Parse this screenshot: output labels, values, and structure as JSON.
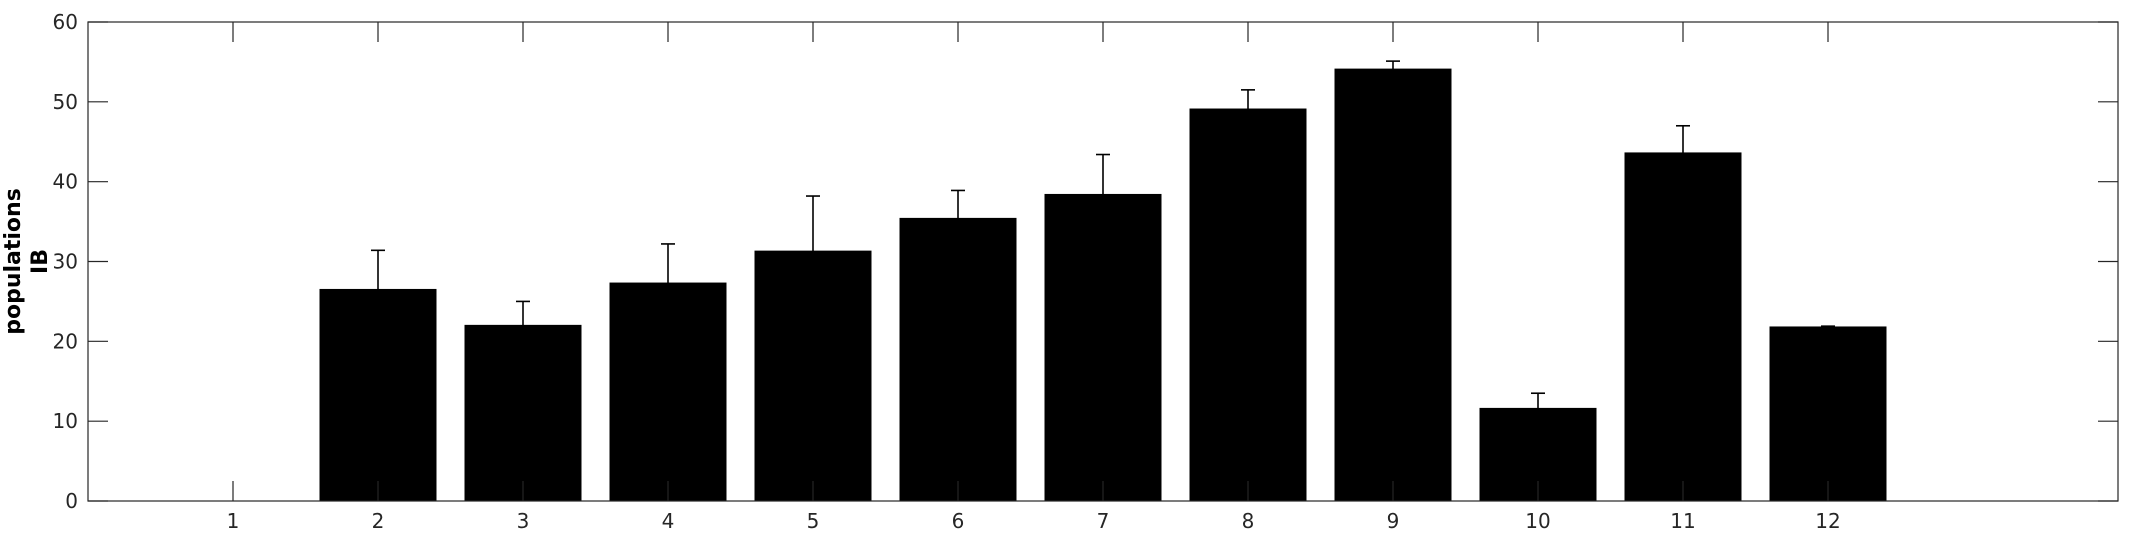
{
  "chart_data": {
    "type": "bar",
    "categories": [
      "1",
      "2",
      "3",
      "4",
      "5",
      "6",
      "7",
      "8",
      "9",
      "10",
      "11",
      "12"
    ],
    "values": [
      0,
      26.5,
      22,
      27.3,
      31.3,
      35.4,
      38.4,
      49.1,
      54.1,
      11.6,
      43.6,
      21.8
    ],
    "error_upper": [
      0,
      31.4,
      25.0,
      32.2,
      38.2,
      38.9,
      43.4,
      51.5,
      55.1,
      13.5,
      47.0,
      21.9
    ],
    "ylabel_lines": [
      "populations",
      "IB"
    ],
    "xlabel": "",
    "title": "",
    "xlim": [
      0,
      14
    ],
    "ylim": [
      0,
      60
    ],
    "yticks": [
      0,
      10,
      20,
      30,
      40,
      50,
      60
    ],
    "bar_color": "#000000",
    "grid": false
  }
}
